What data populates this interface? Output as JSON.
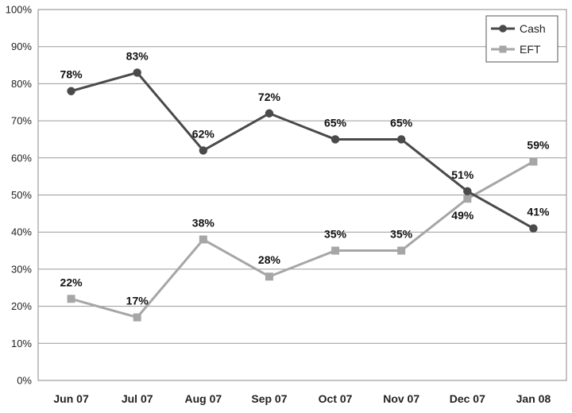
{
  "chart_data": {
    "type": "line",
    "title": "",
    "xlabel": "",
    "ylabel": "",
    "categories": [
      "Jun 07",
      "Jul 07",
      "Aug 07",
      "Sep 07",
      "Oct 07",
      "Nov 07",
      "Dec 07",
      "Jan 08"
    ],
    "series": [
      {
        "name": "Cash",
        "values": [
          78,
          83,
          62,
          72,
          65,
          65,
          51,
          41
        ],
        "labels": [
          "78%",
          "83%",
          "62%",
          "72%",
          "65%",
          "65%",
          "51%",
          "41%"
        ],
        "color": "#4a4a4a",
        "marker": "circle"
      },
      {
        "name": "EFT",
        "values": [
          22,
          17,
          38,
          28,
          35,
          35,
          49,
          59
        ],
        "labels": [
          "22%",
          "17%",
          "38%",
          "28%",
          "35%",
          "35%",
          "49%",
          "59%"
        ],
        "color": "#a6a6a6",
        "marker": "square"
      }
    ],
    "y_ticks": [
      "0%",
      "10%",
      "20%",
      "30%",
      "40%",
      "50%",
      "60%",
      "70%",
      "80%",
      "90%",
      "100%"
    ],
    "ylim": [
      0,
      100
    ],
    "grid": true,
    "legend_position": "top-right"
  }
}
